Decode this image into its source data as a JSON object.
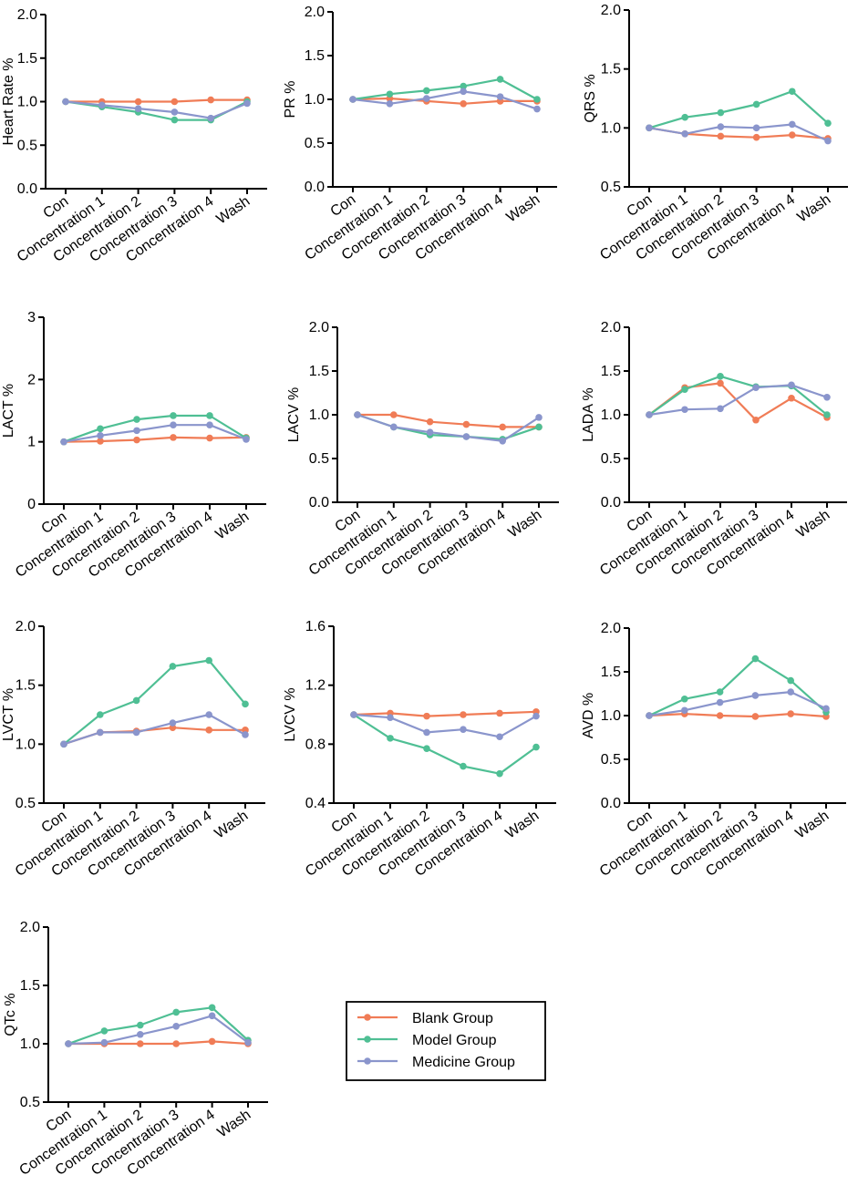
{
  "categories": [
    "Con",
    "Concentration 1",
    "Concentration 2",
    "Concentration 3",
    "Concentration 4",
    "Wash"
  ],
  "series_meta": [
    {
      "name": "Blank Group",
      "color": "#f07c56"
    },
    {
      "name": "Model Group",
      "color": "#4fbf94"
    },
    {
      "name": "Medicine Group",
      "color": "#8a95cc"
    }
  ],
  "legend": {
    "items": [
      "Blank Group",
      "Model Group",
      "Medicine Group"
    ]
  },
  "chart_data": [
    {
      "type": "line",
      "title": "",
      "xlabel": "",
      "ylabel": "Heart Rate %",
      "ylim": [
        0.0,
        2.0
      ],
      "yticks": [
        "0.0",
        "0.5",
        "1.0",
        "1.5",
        "2.0"
      ],
      "series": [
        {
          "name": "Blank Group",
          "values": [
            1.0,
            1.0,
            1.0,
            1.0,
            1.02,
            1.02
          ]
        },
        {
          "name": "Model Group",
          "values": [
            1.0,
            0.94,
            0.88,
            0.79,
            0.79,
            1.0
          ]
        },
        {
          "name": "Medicine Group",
          "values": [
            1.0,
            0.96,
            0.92,
            0.88,
            0.81,
            0.98
          ]
        }
      ]
    },
    {
      "type": "line",
      "title": "",
      "xlabel": "",
      "ylabel": "PR %",
      "ylim": [
        0.0,
        2.0
      ],
      "yticks": [
        "0.0",
        "0.5",
        "1.0",
        "1.5",
        "2.0"
      ],
      "series": [
        {
          "name": "Blank Group",
          "values": [
            1.0,
            1.01,
            0.98,
            0.95,
            0.98,
            0.98
          ]
        },
        {
          "name": "Model Group",
          "values": [
            1.0,
            1.06,
            1.1,
            1.15,
            1.23,
            1.0
          ]
        },
        {
          "name": "Medicine Group",
          "values": [
            1.0,
            0.95,
            1.01,
            1.09,
            1.03,
            0.89
          ]
        }
      ]
    },
    {
      "type": "line",
      "title": "",
      "xlabel": "",
      "ylabel": "QRS %",
      "ylim": [
        0.5,
        2.0
      ],
      "yticks": [
        "0.5",
        "1.0",
        "1.5",
        "2.0"
      ],
      "series": [
        {
          "name": "Blank Group",
          "values": [
            1.0,
            0.95,
            0.93,
            0.92,
            0.94,
            0.91
          ]
        },
        {
          "name": "Model Group",
          "values": [
            1.0,
            1.09,
            1.13,
            1.2,
            1.31,
            1.04
          ]
        },
        {
          "name": "Medicine Group",
          "values": [
            1.0,
            0.95,
            1.01,
            1.0,
            1.03,
            0.89
          ]
        }
      ]
    },
    {
      "type": "line",
      "title": "",
      "xlabel": "",
      "ylabel": "LACT %",
      "ylim": [
        0,
        3
      ],
      "yticks": [
        "0",
        "1",
        "2",
        "3"
      ],
      "series": [
        {
          "name": "Blank Group",
          "values": [
            1.0,
            1.01,
            1.03,
            1.07,
            1.06,
            1.07
          ]
        },
        {
          "name": "Model Group",
          "values": [
            1.0,
            1.21,
            1.36,
            1.42,
            1.42,
            1.06
          ]
        },
        {
          "name": "Medicine Group",
          "values": [
            1.0,
            1.1,
            1.18,
            1.27,
            1.27,
            1.04
          ]
        }
      ]
    },
    {
      "type": "line",
      "title": "",
      "xlabel": "",
      "ylabel": "LACV %",
      "ylim": [
        0.0,
        2.0
      ],
      "yticks": [
        "0.0",
        "0.5",
        "1.0",
        "1.5",
        "2.0"
      ],
      "series": [
        {
          "name": "Blank Group",
          "values": [
            1.0,
            1.0,
            0.92,
            0.89,
            0.86,
            0.86
          ]
        },
        {
          "name": "Model Group",
          "values": [
            1.0,
            0.86,
            0.77,
            0.75,
            0.72,
            0.86
          ]
        },
        {
          "name": "Medicine Group",
          "values": [
            1.0,
            0.86,
            0.8,
            0.75,
            0.7,
            0.97
          ]
        }
      ]
    },
    {
      "type": "line",
      "title": "",
      "xlabel": "",
      "ylabel": "LADA %",
      "ylim": [
        0.0,
        2.0
      ],
      "yticks": [
        "0.0",
        "0.5",
        "1.0",
        "1.5",
        "2.0"
      ],
      "series": [
        {
          "name": "Blank Group",
          "values": [
            1.0,
            1.31,
            1.36,
            0.94,
            1.19,
            0.97
          ]
        },
        {
          "name": "Model Group",
          "values": [
            1.0,
            1.29,
            1.44,
            1.32,
            1.33,
            1.0
          ]
        },
        {
          "name": "Medicine Group",
          "values": [
            1.0,
            1.06,
            1.07,
            1.31,
            1.34,
            1.2
          ]
        }
      ]
    },
    {
      "type": "line",
      "title": "",
      "xlabel": "",
      "ylabel": "LVCT %",
      "ylim": [
        0.5,
        2.0
      ],
      "yticks": [
        "0.5",
        "1.0",
        "1.5",
        "2.0"
      ],
      "series": [
        {
          "name": "Blank Group",
          "values": [
            1.0,
            1.1,
            1.11,
            1.14,
            1.12,
            1.12
          ]
        },
        {
          "name": "Model Group",
          "values": [
            1.0,
            1.25,
            1.37,
            1.66,
            1.71,
            1.34
          ]
        },
        {
          "name": "Medicine Group",
          "values": [
            1.0,
            1.1,
            1.1,
            1.18,
            1.25,
            1.08
          ]
        }
      ]
    },
    {
      "type": "line",
      "title": "",
      "xlabel": "",
      "ylabel": "LVCV %",
      "ylim": [
        0.4,
        1.6
      ],
      "yticks": [
        "0.4",
        "0.8",
        "1.2",
        "1.6"
      ],
      "series": [
        {
          "name": "Blank Group",
          "values": [
            1.0,
            1.01,
            0.99,
            1.0,
            1.01,
            1.02
          ]
        },
        {
          "name": "Model Group",
          "values": [
            1.0,
            0.84,
            0.77,
            0.65,
            0.6,
            0.78
          ]
        },
        {
          "name": "Medicine Group",
          "values": [
            1.0,
            0.98,
            0.88,
            0.9,
            0.85,
            0.99
          ]
        }
      ]
    },
    {
      "type": "line",
      "title": "",
      "xlabel": "",
      "ylabel": "AVD %",
      "ylim": [
        0.0,
        2.0
      ],
      "yticks": [
        "0.0",
        "0.5",
        "1.0",
        "1.5",
        "2.0"
      ],
      "series": [
        {
          "name": "Blank Group",
          "values": [
            1.0,
            1.02,
            1.0,
            0.99,
            1.02,
            0.99
          ]
        },
        {
          "name": "Model Group",
          "values": [
            1.0,
            1.19,
            1.27,
            1.65,
            1.4,
            1.04
          ]
        },
        {
          "name": "Medicine Group",
          "values": [
            1.0,
            1.06,
            1.15,
            1.23,
            1.27,
            1.08
          ]
        }
      ]
    },
    {
      "type": "line",
      "title": "",
      "xlabel": "",
      "ylabel": "QTc %",
      "ylim": [
        0.5,
        2.0
      ],
      "yticks": [
        "0.5",
        "1.0",
        "1.5",
        "2.0"
      ],
      "series": [
        {
          "name": "Blank Group",
          "values": [
            1.0,
            1.0,
            1.0,
            1.0,
            1.02,
            1.0
          ]
        },
        {
          "name": "Model Group",
          "values": [
            1.0,
            1.11,
            1.16,
            1.27,
            1.31,
            1.03
          ]
        },
        {
          "name": "Medicine Group",
          "values": [
            1.0,
            1.01,
            1.08,
            1.15,
            1.24,
            1.01
          ]
        }
      ]
    }
  ]
}
